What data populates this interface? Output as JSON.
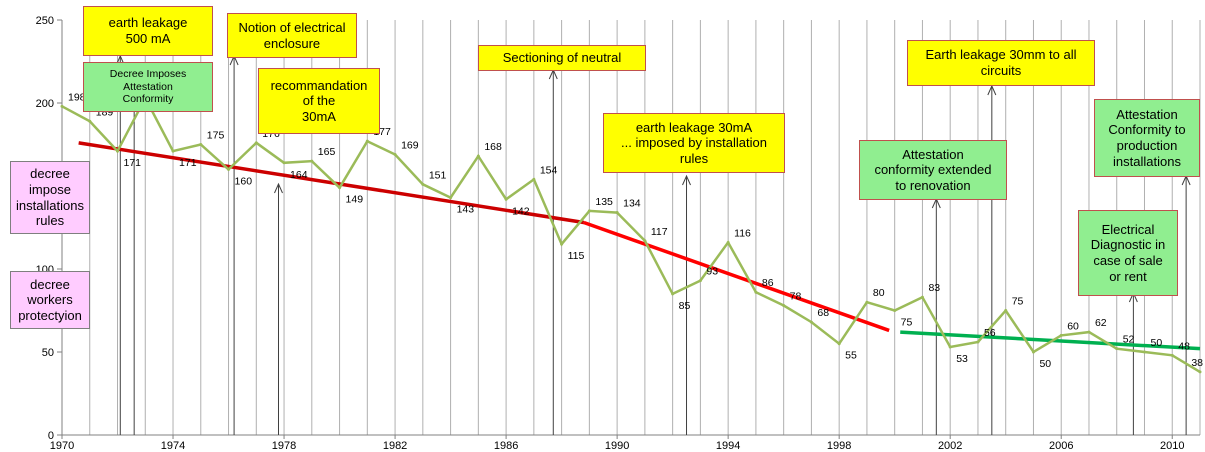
{
  "chart_data": {
    "type": "line",
    "xlim": [
      1970,
      2011
    ],
    "ylim": [
      0,
      250
    ],
    "y_ticks": [
      "0",
      "50",
      "100",
      "150",
      "200",
      "250"
    ],
    "x_ticks": [
      "1970",
      "1974",
      "1978",
      "1982",
      "1986",
      "1990",
      "1994",
      "1998",
      "2002",
      "2006",
      "2010"
    ],
    "grid": "vertical lines every year",
    "series": [
      {
        "color": "#9bbb59",
        "points": [
          {
            "x": 1970,
            "y": 198,
            "label": "198"
          },
          {
            "x": 1971,
            "y": 189,
            "label": "189"
          },
          {
            "x": 1972,
            "y": 171,
            "label": "171"
          },
          {
            "x": 1973,
            "y": 203,
            "label": ""
          },
          {
            "x": 1974,
            "y": 171,
            "label": "171"
          },
          {
            "x": 1975,
            "y": 175,
            "label": "175"
          },
          {
            "x": 1976,
            "y": 160,
            "label": "160"
          },
          {
            "x": 1977,
            "y": 176,
            "label": "176"
          },
          {
            "x": 1978,
            "y": 164,
            "label": "164"
          },
          {
            "x": 1979,
            "y": 165,
            "label": "165"
          },
          {
            "x": 1980,
            "y": 149,
            "label": "149"
          },
          {
            "x": 1981,
            "y": 177,
            "label": "177"
          },
          {
            "x": 1982,
            "y": 169,
            "label": "169"
          },
          {
            "x": 1983,
            "y": 151,
            "label": "151"
          },
          {
            "x": 1984,
            "y": 143,
            "label": "143"
          },
          {
            "x": 1985,
            "y": 168,
            "label": "168"
          },
          {
            "x": 1986,
            "y": 142,
            "label": "142"
          },
          {
            "x": 1987,
            "y": 154,
            "label": "154"
          },
          {
            "x": 1988,
            "y": 115,
            "label": "115"
          },
          {
            "x": 1989,
            "y": 135,
            "label": "135"
          },
          {
            "x": 1990,
            "y": 134,
            "label": "134"
          },
          {
            "x": 1991,
            "y": 117,
            "label": "117"
          },
          {
            "x": 1992,
            "y": 85,
            "label": "85"
          },
          {
            "x": 1993,
            "y": 93,
            "label": "93"
          },
          {
            "x": 1994,
            "y": 116,
            "label": "116"
          },
          {
            "x": 1995,
            "y": 86,
            "label": "86"
          },
          {
            "x": 1996,
            "y": 78,
            "label": "78"
          },
          {
            "x": 1997,
            "y": 68,
            "label": "68"
          },
          {
            "x": 1998,
            "y": 55,
            "label": "55"
          },
          {
            "x": 1999,
            "y": 80,
            "label": "80"
          },
          {
            "x": 2000,
            "y": 75,
            "label": "75"
          },
          {
            "x": 2001,
            "y": 83,
            "label": "83"
          },
          {
            "x": 2002,
            "y": 53,
            "label": "53"
          },
          {
            "x": 2003,
            "y": 56,
            "label": "56"
          },
          {
            "x": 2004,
            "y": 75,
            "label": "75"
          },
          {
            "x": 2005,
            "y": 50,
            "label": "50"
          },
          {
            "x": 2006,
            "y": 60,
            "label": "60"
          },
          {
            "x": 2007,
            "y": 62,
            "label": "62"
          },
          {
            "x": 2008,
            "y": 52,
            "label": "52"
          },
          {
            "x": 2009,
            "y": 50,
            "label": "50"
          },
          {
            "x": 2010,
            "y": 48,
            "label": "48"
          },
          {
            "x": 2011,
            "y": 38,
            "label": "38"
          }
        ]
      }
    ],
    "trendlines": [
      {
        "color": "#cc0000",
        "points": [
          [
            1970.6,
            176
          ],
          [
            1988.8,
            128
          ]
        ]
      },
      {
        "color": "#ff0000",
        "points": [
          [
            1988.8,
            128
          ],
          [
            1999.8,
            63
          ]
        ]
      },
      {
        "color": "#00b050",
        "points": [
          [
            2000.2,
            62
          ],
          [
            2011,
            52
          ]
        ]
      }
    ],
    "annotations": [
      {
        "text": "earth leakage\n500 mA",
        "style": "yellow",
        "arrow_x": 1972.1
      },
      {
        "text": "Notion of electrical\nenclosure",
        "style": "yellow",
        "arrow_x": 1976.2
      },
      {
        "text": "Decree Imposes\nAttestation\nConformity",
        "style": "green",
        "arrow_x": 1972.6
      },
      {
        "text": "recommandation\nof the\n30mA",
        "style": "yellow",
        "arrow_x": 1977.8
      },
      {
        "text": "Sectioning of neutral",
        "style": "yellow",
        "arrow_x": 1987.7
      },
      {
        "text": "earth leakage  30mA\n... imposed by installation\nrules",
        "style": "yellow",
        "arrow_x": 1992.5
      },
      {
        "text": "Earth leakage 30mm to all\ncircuits",
        "style": "yellow",
        "arrow_x": 2003.5
      },
      {
        "text": "Attestation\nconformity extended\nto renovation",
        "style": "green",
        "arrow_x": 2001.5
      },
      {
        "text": "Attestation\nConformity to\nproduction\ninstallations",
        "style": "green",
        "arrow_x": 2010.5
      },
      {
        "text": "Electrical\nDiagnostic in\ncase of sale\nor rent",
        "style": "green",
        "arrow_x": 2008.6
      },
      {
        "text": "decree\nimpose\ninstallations\nrules",
        "style": "pink",
        "arrow_x": null
      },
      {
        "text": "decree\nworkers\nprotectyion",
        "style": "pink",
        "arrow_x": null
      }
    ]
  }
}
